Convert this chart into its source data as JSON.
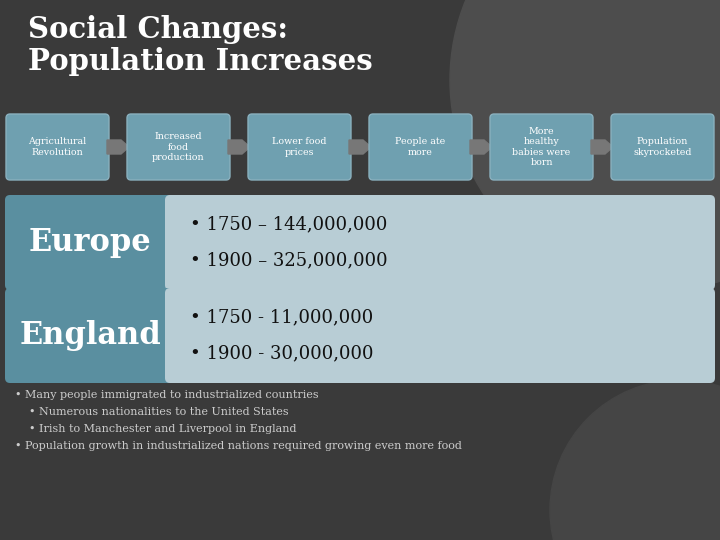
{
  "title": "Social Changes:\nPopulation Increases",
  "title_color": "#ffffff",
  "bg_color": "#3a3a3a",
  "bg_circle_color": "#4d4d4d",
  "flow_boxes": [
    "Agricultural\nRevolution",
    "Increased\nfood\nproduction",
    "Lower food\nprices",
    "People ate\nmore",
    "More\nhealthy\nbabies were\nborn",
    "Population\nskyrocketed"
  ],
  "flow_box_color": "#6fa0b0",
  "flow_box_border": "#8ab0be",
  "flow_text_color": "#ffffff",
  "arrow_color": "#777777",
  "europe_label": "Europe",
  "europe_data": [
    "1750 – 144,000,000",
    "1900 – 325,000,000"
  ],
  "england_label": "England",
  "england_data": [
    "1750 - 11,000,000",
    "1900 - 30,000,000"
  ],
  "region_label_bg": "#5a8fa0",
  "region_data_bg": "#b8cdd5",
  "region_label_color": "#ffffff",
  "region_data_color": "#111111",
  "bullet_points": [
    "• Many people immigrated to industrialized countries",
    "    • Numerous nationalities to the United States",
    "    • Irish to Manchester and Liverpool in England",
    "• Population growth in industrialized nations required growing even more food"
  ],
  "bullet_color": "#cccccc"
}
